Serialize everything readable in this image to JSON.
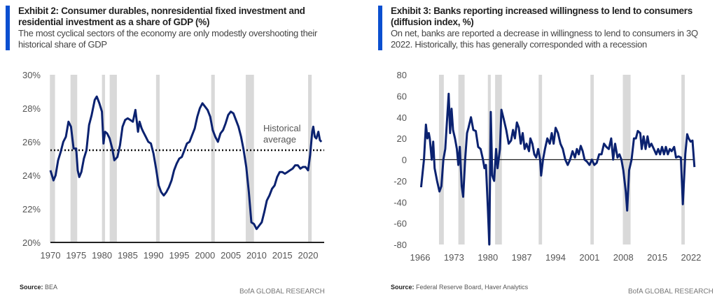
{
  "chart_data": [
    {
      "type": "line",
      "title": "Exhibit 2: Consumer durables, nonresidential fixed investment and residential investment as a share of GDP (%)",
      "subtitle": "The most cyclical sectors of the economy are only modestly overshooting their historical share of GDP",
      "source_label": "Source:",
      "source": "BEA",
      "brand": "BofA GLOBAL RESEARCH",
      "xlim": [
        1970,
        2023
      ],
      "ylim": [
        20,
        30
      ],
      "xticks": [
        "1970",
        "1975",
        "1980",
        "1985",
        "1990",
        "1995",
        "2000",
        "2005",
        "2010",
        "2015",
        "2020"
      ],
      "yticks": [
        "20%",
        "22%",
        "24%",
        "26%",
        "28%",
        "30%"
      ],
      "annotation": [
        "Historical",
        "average"
      ],
      "historical_average": 25.5,
      "recessions": [
        [
          1969.9,
          1970.9
        ],
        [
          1973.9,
          1975.2
        ],
        [
          1980.0,
          1980.6
        ],
        [
          1981.5,
          1982.9
        ],
        [
          1990.5,
          1991.2
        ],
        [
          2001.2,
          2001.9
        ],
        [
          2007.9,
          2009.5
        ],
        [
          2020.0,
          2020.7
        ]
      ],
      "line_color": "#0b2270",
      "shade_color": "#d9d9d9",
      "series": [
        {
          "x": [
            1970,
            1970.6,
            1971,
            1971.5,
            1972,
            1972.5,
            1973,
            1973.5,
            1974,
            1974.5,
            1975,
            1975.3,
            1975.6,
            1976,
            1976.5,
            1977,
            1977.5,
            1978,
            1978.6,
            1979,
            1979.5,
            1980,
            1980.3,
            1980.6,
            1981,
            1981.5,
            1982,
            1982.4,
            1983,
            1983.5,
            1984,
            1984.5,
            1985,
            1985.5,
            1986,
            1986.5,
            1987,
            1987.3,
            1987.7,
            1988,
            1988.5,
            1989,
            1989.5,
            1990,
            1990.5,
            1991,
            1991.5,
            1992,
            1992.5,
            1993,
            1993.5,
            1994,
            1994.5,
            1995,
            1995.5,
            1996,
            1996.5,
            1997,
            1997.5,
            1998,
            1998.5,
            1999,
            1999.5,
            2000,
            2000.5,
            2001,
            2001.5,
            2002,
            2002.5,
            2003,
            2003.5,
            2004,
            2004.5,
            2005,
            2005.5,
            2006,
            2006.5,
            2007,
            2007.5,
            2008,
            2008.5,
            2009,
            2009.5,
            2010,
            2010.5,
            2011,
            2011.5,
            2012,
            2012.5,
            2013,
            2013.5,
            2014,
            2014.5,
            2015,
            2015.5,
            2016,
            2016.5,
            2017,
            2017.5,
            2018,
            2018.5,
            2019,
            2019.5,
            2020,
            2020.4,
            2020.8,
            2021,
            2021.3,
            2021.6,
            2022,
            2022.3,
            2022.6
          ],
          "y": [
            24.3,
            23.7,
            24.0,
            24.9,
            25.4,
            26.0,
            26.3,
            27.2,
            26.9,
            25.6,
            25.6,
            24.3,
            23.9,
            24.2,
            25.0,
            25.5,
            27.0,
            27.6,
            28.5,
            28.7,
            28.3,
            27.8,
            25.9,
            26.6,
            26.5,
            26.2,
            25.6,
            24.9,
            25.1,
            25.8,
            26.9,
            27.3,
            27.4,
            27.3,
            27.2,
            27.9,
            26.6,
            27.2,
            26.8,
            26.6,
            26.3,
            26.0,
            25.9,
            25.3,
            24.4,
            23.4,
            23.0,
            22.8,
            23.0,
            23.3,
            23.7,
            24.3,
            24.7,
            25.0,
            25.1,
            25.5,
            25.9,
            26.0,
            26.4,
            26.8,
            27.5,
            28.0,
            28.3,
            28.1,
            27.9,
            27.5,
            26.7,
            26.3,
            26.0,
            26.5,
            26.7,
            27.1,
            27.6,
            27.8,
            27.7,
            27.3,
            26.9,
            26.3,
            25.5,
            24.5,
            23.0,
            21.2,
            21.1,
            20.8,
            21.0,
            21.2,
            21.8,
            22.5,
            22.8,
            23.2,
            23.4,
            23.9,
            24.2,
            24.2,
            24.1,
            24.2,
            24.3,
            24.4,
            24.6,
            24.6,
            24.4,
            24.5,
            24.5,
            24.3,
            25.2,
            26.6,
            26.9,
            26.3,
            26.2,
            26.6,
            26.1,
            26.0
          ]
        }
      ]
    },
    {
      "type": "line",
      "title": "Exhibit 3: Banks reporting increased willingness to lend to consumers (diffusion index, %)",
      "subtitle": "On net, banks are reported a decrease in willingness to lend to consumers in 3Q 2022. Historically, this has generally corresponded with a recession",
      "source_label": "Source:",
      "source": "Federal Reserve Board, Haver Analytics",
      "brand": "BofA GLOBAL RESEARCH",
      "xlim": [
        1966,
        2023
      ],
      "ylim": [
        -80,
        80
      ],
      "xticks": [
        "1966",
        "1973",
        "1980",
        "1987",
        "1994",
        "2001",
        "2008",
        "2015",
        "2022"
      ],
      "yticks": [
        "-80",
        "-60",
        "-40",
        "-20",
        "0",
        "20",
        "40",
        "60",
        "80"
      ],
      "recessions": [
        [
          1969.9,
          1970.9
        ],
        [
          1973.9,
          1975.2
        ],
        [
          1980.0,
          1980.6
        ],
        [
          1981.5,
          1982.9
        ],
        [
          1990.5,
          1991.2
        ],
        [
          2001.2,
          2001.9
        ],
        [
          2007.9,
          2009.5
        ],
        [
          2020.0,
          2020.7
        ]
      ],
      "line_color": "#0b2270",
      "shade_color": "#d9d9d9",
      "series": [
        {
          "x": [
            1966.2,
            1966.8,
            1967.2,
            1967.5,
            1967.8,
            1968,
            1968.4,
            1968.7,
            1969,
            1969.5,
            1970,
            1970.4,
            1970.8,
            1971.2,
            1971.6,
            1971.9,
            1972.2,
            1972.5,
            1972.8,
            1973.2,
            1973.6,
            1973.9,
            1974.2,
            1974.6,
            1974.9,
            1975.3,
            1975.7,
            1976,
            1976.5,
            1977,
            1977.5,
            1978,
            1978.5,
            1979,
            1979.3,
            1979.6,
            1980,
            1980.3,
            1980.6,
            1980.9,
            1981.3,
            1981.7,
            1982,
            1982.5,
            1982.8,
            1983.3,
            1983.8,
            1984.3,
            1984.8,
            1985.2,
            1985.6,
            1986,
            1986.4,
            1986.8,
            1987.2,
            1987.6,
            1988,
            1988.5,
            1988.8,
            1989.2,
            1989.6,
            1990,
            1990.4,
            1990.8,
            1991,
            1991.4,
            1991.8,
            1992.3,
            1992.8,
            1993.2,
            1993.6,
            1994,
            1994.5,
            1995,
            1995.5,
            1996,
            1996.5,
            1997,
            1997.5,
            1998,
            1998.4,
            1998.8,
            1999.2,
            1999.6,
            2000,
            2000.5,
            2001,
            2001.5,
            2002,
            2002.5,
            2003,
            2003.5,
            2004,
            2004.5,
            2005,
            2005.5,
            2005.9,
            2006.3,
            2006.8,
            2007.2,
            2007.6,
            2008,
            2008.5,
            2008.8,
            2009.2,
            2009.7,
            2010.2,
            2010.6,
            2011,
            2011.5,
            2011.8,
            2012.2,
            2012.6,
            2013,
            2013.4,
            2013.8,
            2014.3,
            2014.8,
            2015.2,
            2015.6,
            2016,
            2016.4,
            2016.8,
            2017.2,
            2017.6,
            2018,
            2018.5,
            2018.9,
            2019.4,
            2019.9,
            2020.3,
            2020.8,
            2021.2,
            2021.5,
            2021.9,
            2022.3,
            2022.7
          ],
          "y": [
            -26,
            0,
            33,
            20,
            25,
            20,
            0,
            17,
            -8,
            -20,
            -30,
            -25,
            0,
            10,
            40,
            62,
            25,
            48,
            28,
            20,
            10,
            -5,
            12,
            -25,
            -35,
            0,
            25,
            30,
            40,
            28,
            27,
            12,
            10,
            0,
            -8,
            -5,
            -45,
            -80,
            45,
            -15,
            -20,
            10,
            -8,
            10,
            47,
            38,
            28,
            15,
            18,
            28,
            20,
            35,
            30,
            15,
            25,
            10,
            15,
            8,
            20,
            15,
            5,
            2,
            10,
            0,
            -15,
            0,
            10,
            20,
            15,
            25,
            15,
            30,
            25,
            15,
            10,
            0,
            -5,
            0,
            8,
            2,
            10,
            5,
            13,
            8,
            0,
            -2,
            -5,
            0,
            -5,
            -3,
            5,
            5,
            15,
            12,
            10,
            20,
            0,
            15,
            2,
            5,
            0,
            -10,
            -30,
            -48,
            -10,
            0,
            20,
            20,
            27,
            25,
            10,
            22,
            10,
            22,
            12,
            15,
            10,
            5,
            10,
            5,
            12,
            5,
            12,
            5,
            10,
            8,
            12,
            2,
            3,
            2,
            -42,
            5,
            24,
            20,
            17,
            18,
            -7
          ]
        }
      ]
    }
  ]
}
